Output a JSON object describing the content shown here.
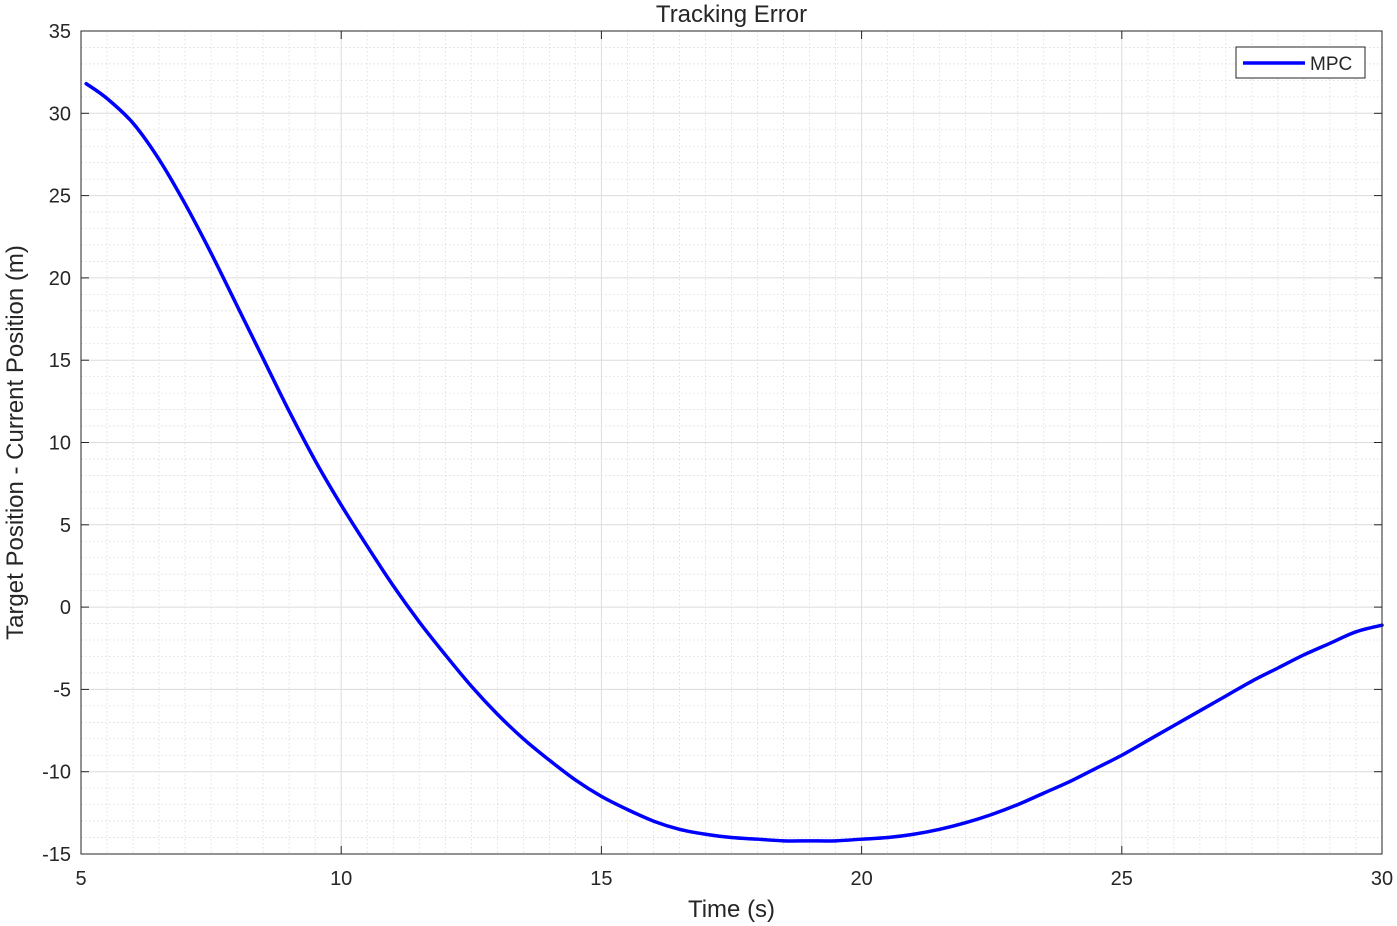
{
  "chart_data": {
    "type": "line",
    "title": "Tracking Error",
    "xlabel": "Time (s)",
    "ylabel": "Target Position - Current Position (m)",
    "xlim": [
      5,
      30
    ],
    "ylim": [
      -15,
      35
    ],
    "xticks": [
      5,
      10,
      15,
      20,
      25,
      30
    ],
    "yticks": [
      -15,
      -10,
      -5,
      0,
      5,
      10,
      15,
      20,
      25,
      30,
      35
    ],
    "grid": true,
    "minor_grid": true,
    "legend_position": "top-right",
    "series": [
      {
        "name": "MPC",
        "color": "#0000ff",
        "x": [
          5.1,
          5.5,
          6.0,
          6.5,
          7.0,
          7.5,
          8.0,
          8.5,
          9.0,
          9.5,
          10.0,
          10.5,
          11.0,
          11.5,
          12.0,
          12.5,
          13.0,
          13.5,
          14.0,
          14.5,
          15.0,
          15.5,
          16.0,
          16.5,
          17.0,
          17.5,
          18.0,
          18.5,
          19.0,
          19.5,
          20.0,
          20.5,
          21.0,
          21.5,
          22.0,
          22.5,
          23.0,
          23.5,
          24.0,
          24.5,
          25.0,
          25.5,
          26.0,
          26.5,
          27.0,
          27.5,
          28.0,
          28.5,
          29.0,
          29.5,
          30.0
        ],
        "y": [
          31.8,
          30.9,
          29.4,
          27.2,
          24.5,
          21.5,
          18.3,
          15.1,
          11.9,
          8.9,
          6.2,
          3.7,
          1.3,
          -0.9,
          -2.9,
          -4.8,
          -6.5,
          -8.0,
          -9.3,
          -10.5,
          -11.5,
          -12.3,
          -13.0,
          -13.5,
          -13.8,
          -14.0,
          -14.1,
          -14.2,
          -14.2,
          -14.2,
          -14.1,
          -14.0,
          -13.8,
          -13.5,
          -13.1,
          -12.6,
          -12.0,
          -11.3,
          -10.6,
          -9.8,
          -9.0,
          -8.1,
          -7.2,
          -6.3,
          -5.4,
          -4.5,
          -3.7,
          -2.9,
          -2.2,
          -1.5,
          -1.1
        ]
      }
    ]
  }
}
